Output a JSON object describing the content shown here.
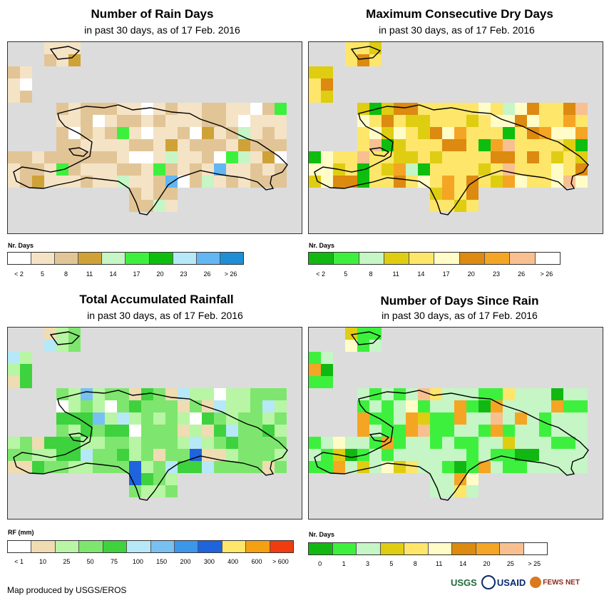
{
  "panels": [
    {
      "id": "rain_days",
      "title": "Number of Rain Days",
      "subtitle": "in past 30 days, as of 17 Feb. 2016",
      "legend_title": "Nr. Days",
      "legend_colors": [
        "#ffffff",
        "#f5e3c6",
        "#e2c596",
        "#cfa238",
        "#c6f5c6",
        "#3ef03e",
        "#0ebe0e",
        "#b6e8f7",
        "#62b6f2",
        "#1e8ed6"
      ],
      "legend_labels": [
        "< 2",
        "5",
        "8",
        "11",
        "14",
        "17",
        "20",
        "23",
        "26",
        "> 26"
      ],
      "default_cell": "#f5e3c6",
      "highlight_cells": [
        [
          "#cfa238",
          5
        ],
        [
          "#e2c596",
          40
        ],
        [
          "#ffffff",
          8
        ],
        [
          "#3ef03e",
          3
        ],
        [
          "#62b6f2",
          2
        ],
        [
          "#c6f5c6",
          3
        ]
      ]
    },
    {
      "id": "dry_days",
      "title": "Maximum Consecutive Dry Days",
      "subtitle": "in past 30 days, as of 17 Feb. 2016",
      "legend_title": "Nr. Days",
      "legend_colors": [
        "#12b812",
        "#3ef03e",
        "#c6f5c6",
        "#dfcd12",
        "#fde66a",
        "#fffcc8",
        "#dc8a10",
        "#f5a524",
        "#f8c090",
        "#ffffff"
      ],
      "legend_labels": [
        "< 2",
        "5",
        "8",
        "11",
        "14",
        "17",
        "20",
        "23",
        "26",
        "> 26"
      ],
      "default_cell": "#fde66a",
      "highlight_cells": [
        [
          "#fffcc8",
          20
        ],
        [
          "#dfcd12",
          18
        ],
        [
          "#dc8a10",
          10
        ],
        [
          "#f5a524",
          8
        ],
        [
          "#0ebe0e",
          5
        ],
        [
          "#f8c090",
          4
        ],
        [
          "#c6f5c6",
          3
        ]
      ]
    },
    {
      "id": "rainfall",
      "title": "Total Accumulated Rainfall",
      "subtitle": "in past 30 days, as of 17 Feb. 2016",
      "legend_title": "RF (mm)",
      "legend_colors": [
        "#ffffff",
        "#f0dcb2",
        "#b8f5a4",
        "#7ee66e",
        "#3ed23e",
        "#b6e8f7",
        "#78c0f2",
        "#3c96ea",
        "#1e64dc",
        "#fde66a",
        "#f5a010",
        "#f03c10"
      ],
      "legend_labels": [
        "< 1",
        "10",
        "25",
        "50",
        "75",
        "100",
        "150",
        "200",
        "300",
        "400",
        "600",
        "> 600"
      ],
      "default_cell": "#7ee66e",
      "highlight_cells": [
        [
          "#b8f5a4",
          25
        ],
        [
          "#3ed23e",
          18
        ],
        [
          "#f0dcb2",
          12
        ],
        [
          "#b6e8f7",
          8
        ],
        [
          "#78c0f2",
          3
        ],
        [
          "#1e64dc",
          2
        ],
        [
          "#ffffff",
          2
        ]
      ]
    },
    {
      "id": "days_since_rain",
      "title": "Number of Days Since Rain",
      "subtitle": "in past 30 days, as of 17 Feb. 2016",
      "legend_title": "Nr. Days",
      "legend_colors": [
        "#12b812",
        "#3ef03e",
        "#c6f5c6",
        "#dfcd12",
        "#fde66a",
        "#fffcc8",
        "#dc8a10",
        "#f5a524",
        "#f8c090",
        "#ffffff"
      ],
      "legend_labels": [
        "0",
        "1",
        "3",
        "5",
        "8",
        "11",
        "14",
        "20",
        "25",
        "> 25"
      ],
      "default_cell": "#c6f5c6",
      "highlight_cells": [
        [
          "#3ef03e",
          30
        ],
        [
          "#12b812",
          6
        ],
        [
          "#f5a524",
          10
        ],
        [
          "#dfcd12",
          5
        ],
        [
          "#fde66a",
          4
        ],
        [
          "#fffcc8",
          3
        ],
        [
          "#f8c090",
          2
        ]
      ]
    }
  ],
  "credit": "Map produced by USGS/EROS",
  "logos": [
    "USGS",
    "USAID",
    "FEWS NET"
  ]
}
